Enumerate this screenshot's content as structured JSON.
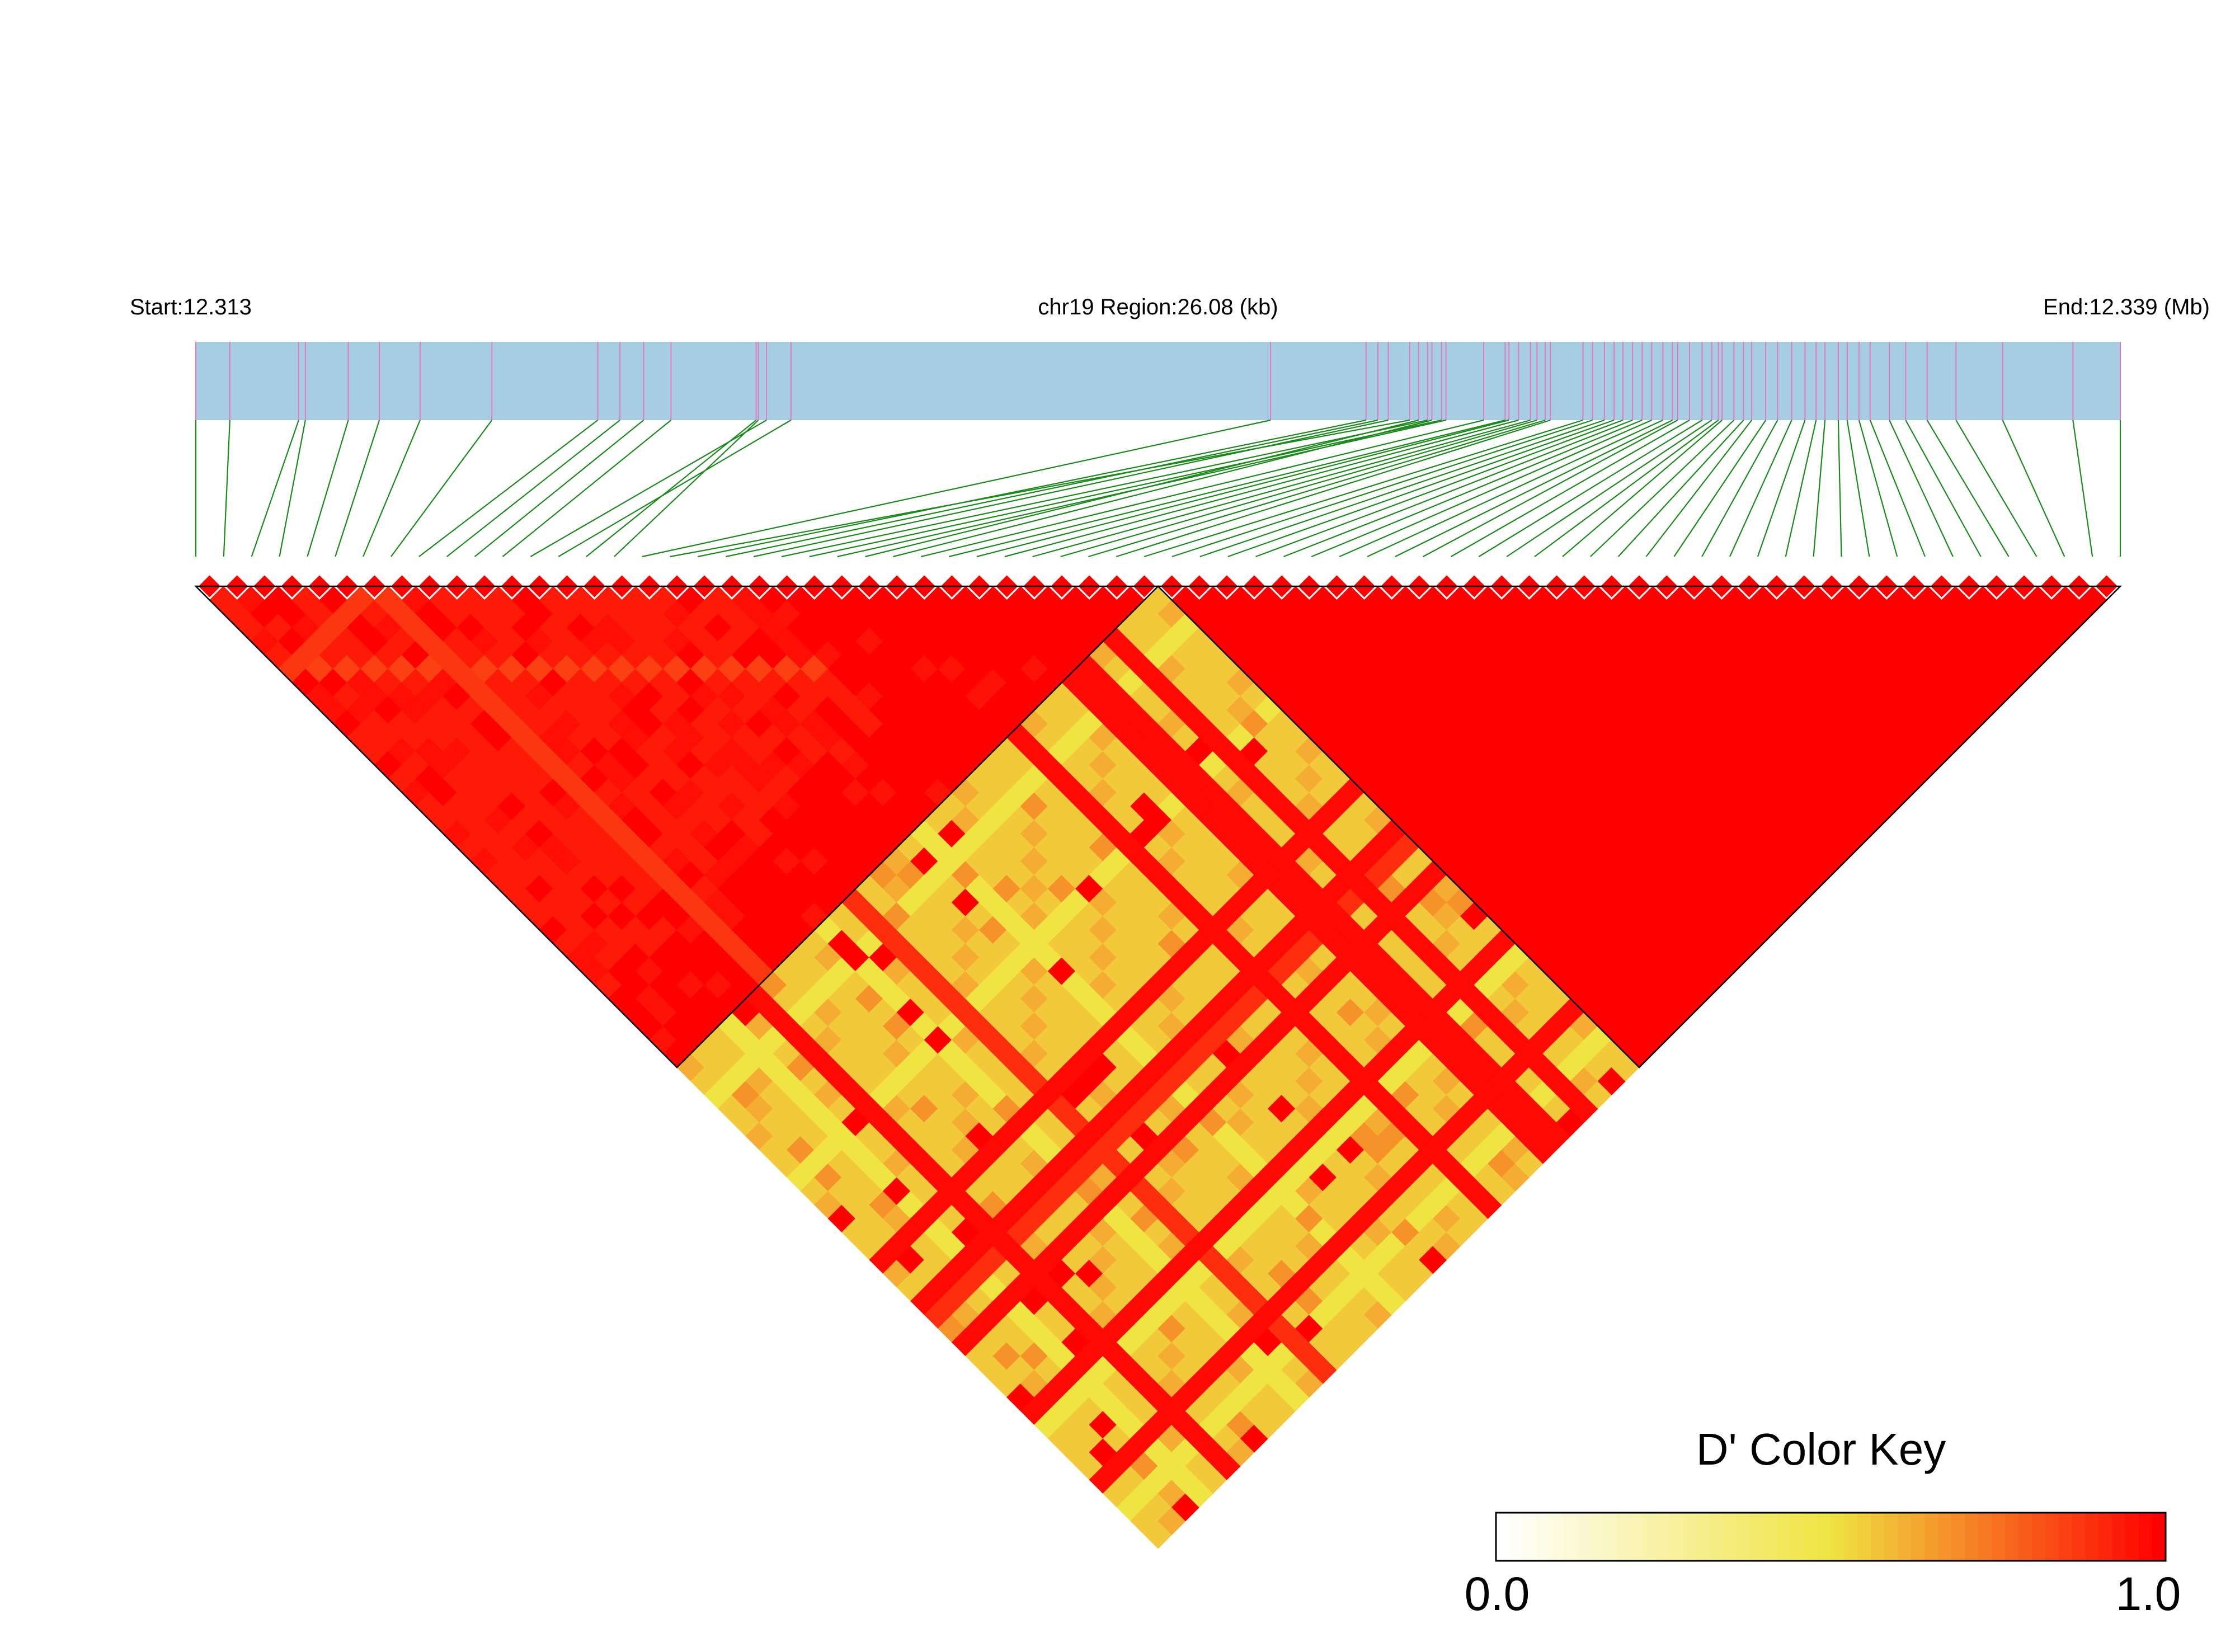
{
  "chart_data": {
    "type": "heatmap",
    "subtype": "linkage-disequilibrium-triangle",
    "measure": "D'",
    "header": {
      "start_label": "Start:12.313",
      "region_label": "chr19 Region:26.08 (kb)",
      "end_label": "End:12.339 (Mb)"
    },
    "chromosome": "chr19",
    "region_start_mb": 12.313,
    "region_end_mb": 12.339,
    "region_length_kb": 26.08,
    "snp_count": 70,
    "snp_positions_mb": [
      12.313,
      12.31346,
      12.31439,
      12.31448,
      12.31506,
      12.31548,
      12.31603,
      12.317,
      12.31843,
      12.31873,
      12.31905,
      12.31942,
      12.32071,
      12.32104,
      12.32057,
      12.3206,
      12.32752,
      12.3294,
      12.32881,
      12.32897,
      12.32911,
      12.32964,
      12.32983,
      12.32989,
      12.32952,
      12.3297,
      12.3304,
      12.33069,
      12.33074,
      12.33087,
      12.33103,
      12.33112,
      12.33123,
      12.3313,
      12.33174,
      12.33187,
      12.33203,
      12.33216,
      12.33228,
      12.33241,
      12.33254,
      12.33267,
      12.33282,
      12.33295,
      12.33302,
      12.33318,
      12.33335,
      12.33348,
      12.33357,
      12.33362,
      12.33378,
      12.33391,
      12.33402,
      12.33421,
      12.33437,
      12.33456,
      12.33474,
      12.33489,
      12.33501,
      12.33519,
      12.33531,
      12.33547,
      12.33562,
      12.33588,
      12.3361,
      12.33639,
      12.33678,
      12.33741,
      12.33836,
      12.339
    ],
    "blocks": [
      {
        "first_snp": 1,
        "last_snp": 35,
        "base_d_prime": 1.0
      },
      {
        "first_snp": 36,
        "last_snp": 70,
        "base_d_prime": 1.0
      }
    ],
    "inter_block_d_prime": 0.55,
    "color_key": {
      "title": "D' Color Key",
      "min_label": "0.0",
      "max_label": "1.0",
      "min": 0.0,
      "max": 1.0,
      "steps": 50,
      "stops": [
        "#ffffff",
        "#f0e442",
        "#ff0000"
      ]
    },
    "colors": {
      "band_fill": "#a6cde2",
      "snp_tick": "#e478c8",
      "connector": "#1a8a1a",
      "cell_outline": "#000000"
    }
  }
}
